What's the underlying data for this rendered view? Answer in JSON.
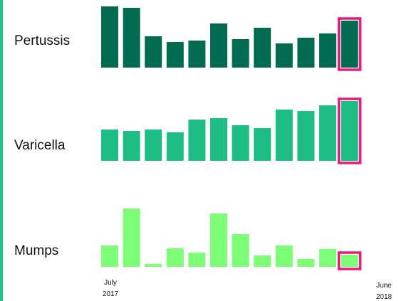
{
  "colors": {
    "accent": "#20c48a",
    "highlight": "#e81a7e"
  },
  "chart_data": [
    {
      "type": "bar",
      "series": [
        {
          "name": "Pertussis",
          "color": "#006b50",
          "values": [
            86,
            84,
            44,
            36,
            38,
            62,
            40,
            56,
            34,
            42,
            48,
            66
          ]
        }
      ],
      "highlight_last": true
    },
    {
      "type": "bar",
      "series": [
        {
          "name": "Varicella",
          "color": "#1fbd86",
          "values": [
            44,
            42,
            44,
            40,
            58,
            60,
            50,
            46,
            72,
            70,
            78,
            84
          ]
        }
      ],
      "highlight_last": true
    },
    {
      "type": "bar",
      "series": [
        {
          "name": "Mumps",
          "color": "#7dff78",
          "values": [
            30,
            82,
            4,
            26,
            20,
            75,
            46,
            16,
            30,
            11,
            25,
            17
          ]
        }
      ],
      "highlight_last": true
    }
  ],
  "x_axis": {
    "start_label": [
      "July",
      "2017"
    ],
    "end_label": [
      "June",
      "2018"
    ]
  }
}
